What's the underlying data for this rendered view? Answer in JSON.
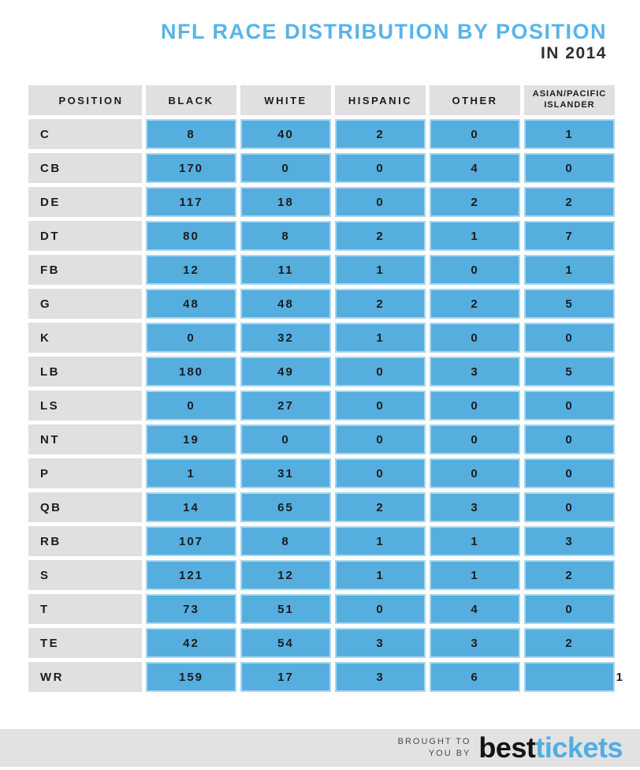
{
  "page": {
    "title": "NFL RACE DISTRIBUTION BY POSITION",
    "subtitle": "IN 2014"
  },
  "chart_data": {
    "type": "table",
    "title": "NFL RACE DISTRIBUTION BY POSITION IN 2014",
    "columns": [
      "POSITION",
      "BLACK",
      "WHITE",
      "HISPANIC",
      "OTHER",
      "ASIAN/PACIFIC ISLANDER"
    ],
    "rows": [
      [
        "C",
        8,
        40,
        2,
        0,
        1
      ],
      [
        "CB",
        170,
        0,
        0,
        4,
        0
      ],
      [
        "DE",
        117,
        18,
        0,
        2,
        2
      ],
      [
        "DT",
        80,
        8,
        2,
        1,
        7
      ],
      [
        "FB",
        12,
        11,
        1,
        0,
        1
      ],
      [
        "G",
        48,
        48,
        2,
        2,
        5
      ],
      [
        "K",
        0,
        32,
        1,
        0,
        0
      ],
      [
        "LB",
        180,
        49,
        0,
        3,
        5
      ],
      [
        "LS",
        0,
        27,
        0,
        0,
        0
      ],
      [
        "NT",
        19,
        0,
        0,
        0,
        0
      ],
      [
        "P",
        1,
        31,
        0,
        0,
        0
      ],
      [
        "QB",
        14,
        65,
        2,
        3,
        0
      ],
      [
        "RB",
        107,
        8,
        1,
        1,
        3
      ],
      [
        "S",
        121,
        12,
        1,
        1,
        2
      ],
      [
        "T",
        73,
        51,
        0,
        4,
        0
      ],
      [
        "TE",
        42,
        54,
        3,
        3,
        2
      ],
      [
        "WR",
        159,
        17,
        3,
        6,
        1
      ]
    ],
    "layout_hints": {
      "last_row_last_value_overflows_right_edge": true,
      "position_column_aligned": "left",
      "value_columns_aligned": "center"
    }
  },
  "footer": {
    "tagline_line1": "BROUGHT TO",
    "tagline_line2": "YOU BY",
    "brand_primary": "best",
    "brand_secondary": "tickets"
  },
  "colors": {
    "cell_blue": "#55AEDE",
    "cell_blue_border": "#A9D6EF",
    "header_gray": "#E0E0E0",
    "footer_gray": "#E2E2E2",
    "title_blue": "#58B4E8",
    "text_dark": "#1C1C1C",
    "brand_blue": "#4FAEE3"
  }
}
